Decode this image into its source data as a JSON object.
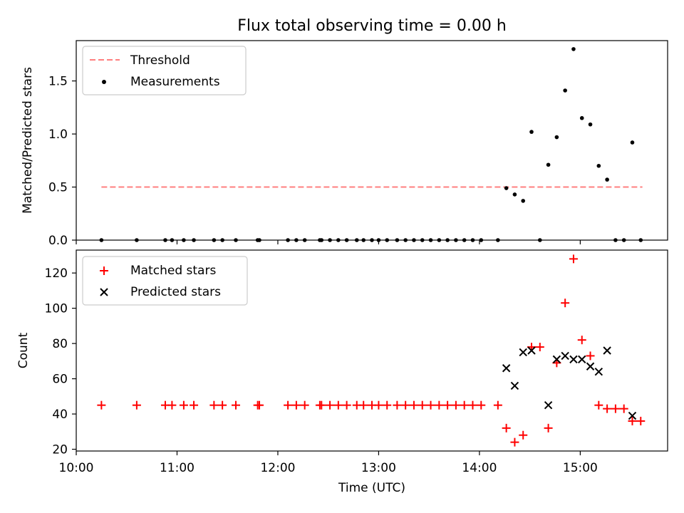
{
  "title": "Flux total observing time = 0.00 h",
  "colors": {
    "threshold": "#ff7f7f",
    "matched": "#ff0000",
    "predicted": "#000000",
    "measurement": "#000000"
  },
  "chart_data": [
    {
      "type": "scatter",
      "panel": "top",
      "ylabel": "Matched/Predicted stars",
      "xlim": [
        "10:00",
        "15:52"
      ],
      "ylim": [
        0,
        1.88
      ],
      "yticks": [
        0.0,
        0.5,
        1.0,
        1.5
      ],
      "ytick_labels": [
        "0.0",
        "0.5",
        "1.0",
        "1.5"
      ],
      "legend": {
        "placement": "top-left",
        "entries": [
          "Threshold",
          "Measurements"
        ]
      },
      "threshold": {
        "name": "Threshold",
        "y": 0.5,
        "x": [
          "10:15",
          "15:37"
        ],
        "style": "dashed"
      },
      "series": [
        {
          "name": "Measurements",
          "marker": "dot",
          "points": [
            [
              "10:15",
              0
            ],
            [
              "10:36",
              0
            ],
            [
              "10:53",
              0
            ],
            [
              "10:57",
              0
            ],
            [
              "11:04",
              0
            ],
            [
              "11:10",
              0
            ],
            [
              "11:22",
              0
            ],
            [
              "11:27",
              0
            ],
            [
              "11:35",
              0
            ],
            [
              "11:48",
              0
            ],
            [
              "11:49",
              0
            ],
            [
              "12:06",
              0
            ],
            [
              "12:11",
              0
            ],
            [
              "12:16",
              0
            ],
            [
              "12:25",
              0
            ],
            [
              "12:26",
              0
            ],
            [
              "12:31",
              0
            ],
            [
              "12:36",
              0
            ],
            [
              "12:41",
              0
            ],
            [
              "12:47",
              0
            ],
            [
              "12:51",
              0
            ],
            [
              "12:56",
              0
            ],
            [
              "13:00",
              0
            ],
            [
              "13:05",
              0
            ],
            [
              "13:11",
              0
            ],
            [
              "13:16",
              0
            ],
            [
              "13:21",
              0
            ],
            [
              "13:26",
              0
            ],
            [
              "13:31",
              0
            ],
            [
              "13:36",
              0
            ],
            [
              "13:41",
              0
            ],
            [
              "13:46",
              0
            ],
            [
              "13:51",
              0
            ],
            [
              "13:56",
              0
            ],
            [
              "14:01",
              0
            ],
            [
              "14:11",
              0
            ],
            [
              "14:16",
              0.49
            ],
            [
              "14:21",
              0.43
            ],
            [
              "14:26",
              0.37
            ],
            [
              "14:31",
              1.02
            ],
            [
              "14:36",
              0
            ],
            [
              "14:41",
              0.71
            ],
            [
              "14:46",
              0.97
            ],
            [
              "14:51",
              1.41
            ],
            [
              "14:56",
              1.8
            ],
            [
              "15:01",
              1.15
            ],
            [
              "15:06",
              1.09
            ],
            [
              "15:11",
              0.7
            ],
            [
              "15:16",
              0.57
            ],
            [
              "15:21",
              0
            ],
            [
              "15:26",
              0
            ],
            [
              "15:31",
              0.92
            ],
            [
              "15:36",
              0
            ]
          ]
        }
      ]
    },
    {
      "type": "scatter",
      "panel": "bottom",
      "xlabel": "Time (UTC)",
      "ylabel": "Count",
      "xlim": [
        "10:00",
        "15:52"
      ],
      "ylim": [
        19,
        133
      ],
      "xticks": [
        "10:00",
        "11:00",
        "12:00",
        "13:00",
        "14:00",
        "15:00"
      ],
      "yticks": [
        20,
        40,
        60,
        80,
        100,
        120
      ],
      "ytick_labels": [
        "20",
        "40",
        "60",
        "80",
        "100",
        "120"
      ],
      "legend": {
        "placement": "top-left",
        "entries": [
          "Matched stars",
          "Predicted stars"
        ]
      },
      "series": [
        {
          "name": "Matched stars",
          "marker": "plus",
          "points": [
            [
              "10:15",
              45
            ],
            [
              "10:36",
              45
            ],
            [
              "10:53",
              45
            ],
            [
              "10:57",
              45
            ],
            [
              "11:04",
              45
            ],
            [
              "11:10",
              45
            ],
            [
              "11:22",
              45
            ],
            [
              "11:27",
              45
            ],
            [
              "11:35",
              45
            ],
            [
              "11:48",
              45
            ],
            [
              "11:49",
              45
            ],
            [
              "12:06",
              45
            ],
            [
              "12:11",
              45
            ],
            [
              "12:16",
              45
            ],
            [
              "12:25",
              45
            ],
            [
              "12:26",
              45
            ],
            [
              "12:31",
              45
            ],
            [
              "12:36",
              45
            ],
            [
              "12:41",
              45
            ],
            [
              "12:47",
              45
            ],
            [
              "12:51",
              45
            ],
            [
              "12:56",
              45
            ],
            [
              "13:00",
              45
            ],
            [
              "13:05",
              45
            ],
            [
              "13:11",
              45
            ],
            [
              "13:16",
              45
            ],
            [
              "13:21",
              45
            ],
            [
              "13:26",
              45
            ],
            [
              "13:31",
              45
            ],
            [
              "13:36",
              45
            ],
            [
              "13:41",
              45
            ],
            [
              "13:46",
              45
            ],
            [
              "13:51",
              45
            ],
            [
              "13:56",
              45
            ],
            [
              "14:01",
              45
            ],
            [
              "14:11",
              45
            ],
            [
              "14:16",
              32
            ],
            [
              "14:21",
              24
            ],
            [
              "14:26",
              28
            ],
            [
              "14:31",
              78
            ],
            [
              "14:36",
              78
            ],
            [
              "14:41",
              32
            ],
            [
              "14:46",
              69
            ],
            [
              "14:51",
              103
            ],
            [
              "14:56",
              128
            ],
            [
              "15:01",
              82
            ],
            [
              "15:06",
              73
            ],
            [
              "15:11",
              45
            ],
            [
              "15:16",
              43
            ],
            [
              "15:21",
              43
            ],
            [
              "15:26",
              43
            ],
            [
              "15:31",
              36
            ],
            [
              "15:36",
              36
            ]
          ]
        },
        {
          "name": "Predicted stars",
          "marker": "x",
          "points": [
            [
              "14:16",
              66
            ],
            [
              "14:21",
              56
            ],
            [
              "14:26",
              75
            ],
            [
              "14:31",
              76
            ],
            [
              "14:41",
              45
            ],
            [
              "14:46",
              71
            ],
            [
              "14:51",
              73
            ],
            [
              "14:56",
              71
            ],
            [
              "15:01",
              71
            ],
            [
              "15:06",
              67
            ],
            [
              "15:11",
              64
            ],
            [
              "15:16",
              76
            ],
            [
              "15:31",
              39
            ]
          ]
        }
      ]
    }
  ]
}
